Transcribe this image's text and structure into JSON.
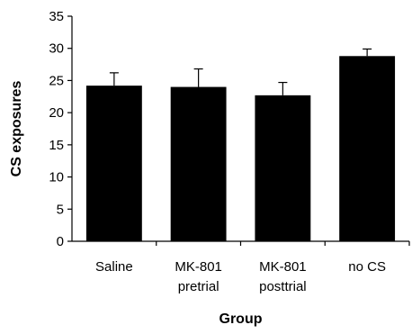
{
  "chart_data": {
    "type": "bar",
    "categories": [
      [
        "Saline"
      ],
      [
        "MK-801",
        "pretrial"
      ],
      [
        "MK-801",
        "posttrial"
      ],
      [
        "no CS"
      ]
    ],
    "series": [
      {
        "values": [
          24.2,
          24.0,
          22.7,
          28.8
        ],
        "errors": [
          2.0,
          2.8,
          2.0,
          1.1
        ],
        "color": "#000000"
      }
    ],
    "xlabel": "Group",
    "ylabel": "CS exposures",
    "ylim": [
      0,
      35
    ],
    "yticks": [
      0,
      5,
      10,
      15,
      20,
      25,
      30,
      35
    ],
    "grid": false,
    "legend": "none"
  }
}
